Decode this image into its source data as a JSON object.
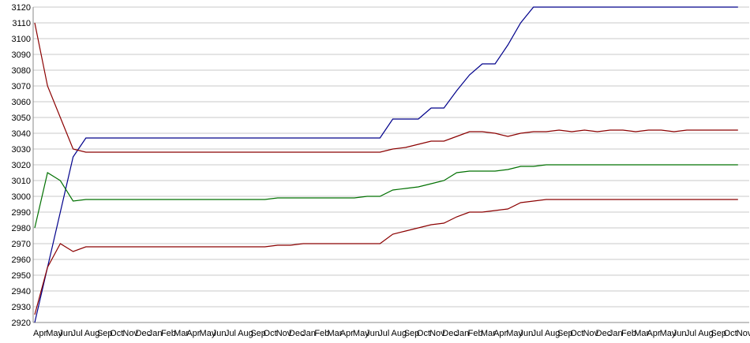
{
  "chart_data": {
    "type": "line",
    "categories": [
      "Apr",
      "May",
      "Jun",
      "Jul",
      "Aug",
      "Sep",
      "Oct",
      "Nov",
      "Dec",
      "Jan",
      "Feb",
      "Mar",
      "Apr",
      "May",
      "Jun",
      "Jul",
      "Aug",
      "Sep",
      "Oct",
      "Nov",
      "Dec",
      "Jan",
      "Feb",
      "Mar",
      "Apr",
      "May",
      "Jun",
      "Jul",
      "Aug",
      "Sep",
      "Oct",
      "Nov",
      "Dec",
      "Jan",
      "Feb",
      "Mar",
      "Apr",
      "May",
      "Jun",
      "Jul",
      "Aug",
      "Sep",
      "Oct",
      "Nov",
      "Dec",
      "Jan",
      "Feb",
      "Mar",
      "Apr",
      "May",
      "Jun",
      "Jul",
      "Aug",
      "Sep",
      "Oct",
      "Nov"
    ],
    "series": [
      {
        "color": "#00008b",
        "values": [
          2920,
          2955,
          2990,
          3025,
          3037,
          3037,
          3037,
          3037,
          3037,
          3037,
          3037,
          3037,
          3037,
          3037,
          3037,
          3037,
          3037,
          3037,
          3037,
          3037,
          3037,
          3037,
          3037,
          3037,
          3037,
          3037,
          3037,
          3037,
          3049,
          3049,
          3049,
          3056,
          3056,
          3067,
          3077,
          3084,
          3084,
          3096,
          3110,
          3120,
          3120,
          3120,
          3120,
          3120,
          3120,
          3120,
          3120,
          3120,
          3120,
          3120,
          3120,
          3120,
          3120,
          3120,
          3120,
          3120
        ]
      },
      {
        "color": "#8b0000",
        "values": [
          3110,
          3070,
          3050,
          3030,
          3028,
          3028,
          3028,
          3028,
          3028,
          3028,
          3028,
          3028,
          3028,
          3028,
          3028,
          3028,
          3028,
          3028,
          3028,
          3028,
          3028,
          3028,
          3028,
          3028,
          3028,
          3028,
          3028,
          3028,
          3030,
          3031,
          3033,
          3035,
          3035,
          3038,
          3041,
          3041,
          3040,
          3038,
          3040,
          3041,
          3041,
          3042,
          3041,
          3042,
          3041,
          3042,
          3042,
          3041,
          3042,
          3042,
          3041,
          3042,
          3042,
          3042,
          3042,
          3042
        ]
      },
      {
        "color": "#007000",
        "values": [
          2980,
          3015,
          3010,
          2997,
          2998,
          2998,
          2998,
          2998,
          2998,
          2998,
          2998,
          2998,
          2998,
          2998,
          2998,
          2998,
          2998,
          2998,
          2998,
          2999,
          2999,
          2999,
          2999,
          2999,
          2999,
          2999,
          3000,
          3000,
          3004,
          3005,
          3006,
          3008,
          3010,
          3015,
          3016,
          3016,
          3016,
          3017,
          3019,
          3019,
          3020,
          3020,
          3020,
          3020,
          3020,
          3020,
          3020,
          3020,
          3020,
          3020,
          3020,
          3020,
          3020,
          3020,
          3020,
          3020
        ]
      },
      {
        "color": "#8b0000",
        "values": [
          2925,
          2955,
          2970,
          2965,
          2968,
          2968,
          2968,
          2968,
          2968,
          2968,
          2968,
          2968,
          2968,
          2968,
          2968,
          2968,
          2968,
          2968,
          2968,
          2969,
          2969,
          2970,
          2970,
          2970,
          2970,
          2970,
          2970,
          2970,
          2976,
          2978,
          2980,
          2982,
          2983,
          2987,
          2990,
          2990,
          2991,
          2992,
          2996,
          2997,
          2998,
          2998,
          2998,
          2998,
          2998,
          2998,
          2998,
          2998,
          2998,
          2998,
          2998,
          2998,
          2998,
          2998,
          2998,
          2998
        ]
      }
    ],
    "ylim": [
      2920,
      3120
    ],
    "yticks": [
      2920,
      2930,
      2940,
      2950,
      2960,
      2970,
      2980,
      2990,
      3000,
      3010,
      3020,
      3030,
      3040,
      3050,
      3060,
      3070,
      3080,
      3090,
      3100,
      3110,
      3120
    ],
    "grid": true
  }
}
